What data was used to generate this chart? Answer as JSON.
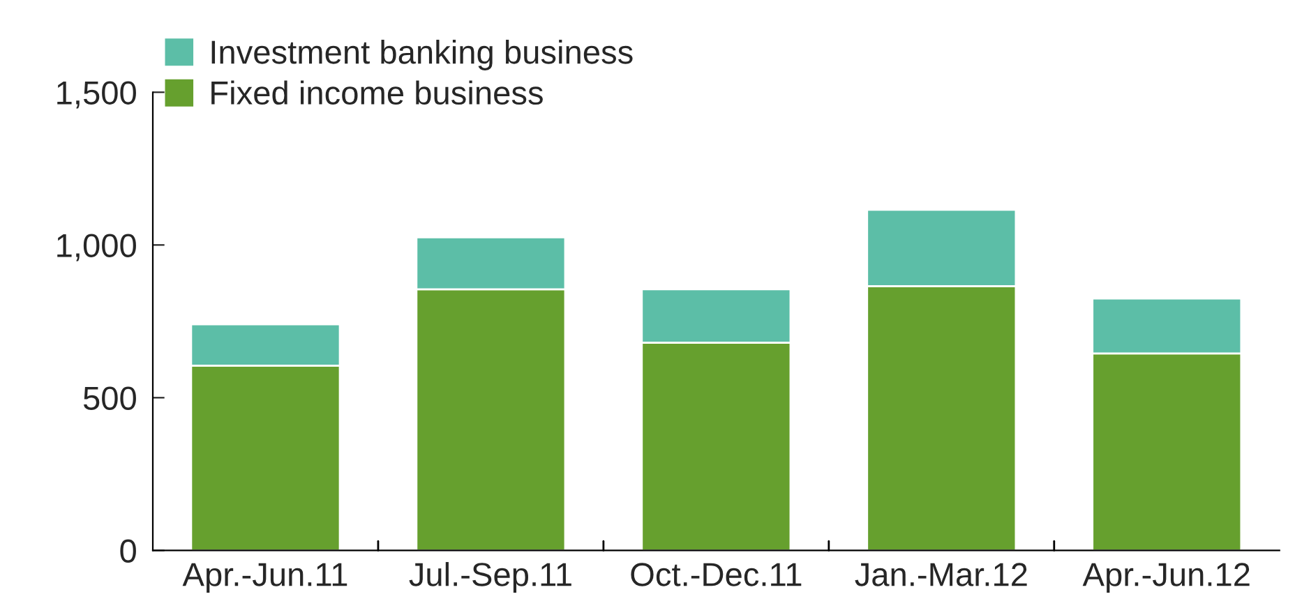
{
  "chart_data": {
    "type": "bar",
    "stacked": true,
    "categories": [
      "Apr.-Jun.11",
      "Jul.-Sep.11",
      "Oct.-Dec.11",
      "Jan.-Mar.12",
      "Apr.-Jun.12"
    ],
    "series": [
      {
        "name": "Fixed income business",
        "color": "#66a02e",
        "values": [
          605,
          855,
          680,
          865,
          645
        ]
      },
      {
        "name": "Investment banking business",
        "color": "#5cbea7",
        "values": [
          135,
          170,
          175,
          250,
          180
        ]
      }
    ],
    "ylim": [
      0,
      1500
    ],
    "yticks": [
      0,
      {
        "value": 500,
        "label": "500"
      },
      {
        "value": 1000,
        "label": "1,000"
      },
      {
        "value": 1500,
        "label": "1,500"
      }
    ],
    "grid": false,
    "legend": "top left"
  }
}
